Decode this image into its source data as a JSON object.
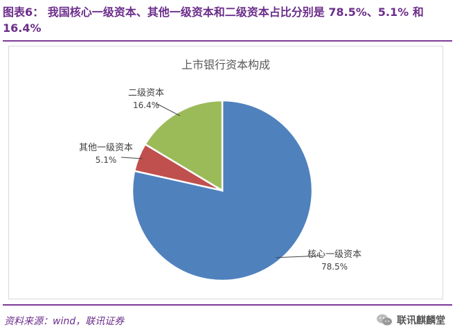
{
  "caption": "图表6： 我国核心一级资本、其他一级资本和二级资本占比分别是 78.5%、5.1% 和 16.4%",
  "source": "资料来源：wind，联讯证券",
  "watermark": "联讯麒麟堂",
  "chart_data": {
    "type": "pie",
    "title": "上市银行资本构成",
    "slices": [
      {
        "label": "核心一级资本",
        "value": 78.5,
        "value_label": "78.5%",
        "color": "#4f81bd"
      },
      {
        "label": "其他一级资本",
        "value": 5.1,
        "value_label": "5.1%",
        "color": "#c0504d"
      },
      {
        "label": "二级资本",
        "value": 16.4,
        "value_label": "16.4%",
        "color": "#9bbb59"
      }
    ],
    "start": "12 o'clock, clockwise",
    "legend": "none (leader-line labels)"
  }
}
